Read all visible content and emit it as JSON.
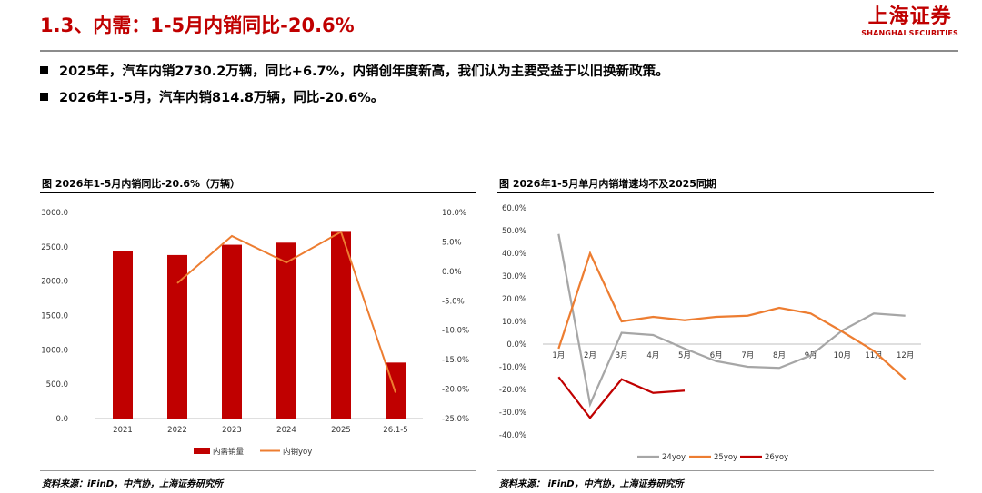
{
  "header": {
    "title": "1.3、内需：1-5月内销同比-20.6%",
    "logo_cn": "上海证券",
    "logo_en": "SHANGHAI SECURITIES"
  },
  "bullets": [
    "2025年，汽车内销2730.2万辆，同比+6.7%，内销创年度新高，我们认为主要受益于以旧换新政策。",
    "2026年1-5月，汽车内销814.8万辆，同比-20.6%。"
  ],
  "colors": {
    "accent": "#c00000",
    "grey": "#a6a6a6",
    "orange": "#ed7d31",
    "dark_red": "#c00000"
  },
  "chart_data": [
    {
      "type": "bar",
      "title": "图 2026年1-5月内销同比-20.6%（万辆）",
      "categories": [
        "2021",
        "2022",
        "2023",
        "2024",
        "2025",
        "26.1-5"
      ],
      "series": [
        {
          "name": "内需销量",
          "type": "bar",
          "axis": "left",
          "color": "#c00000",
          "values": [
            2435,
            2380,
            2530,
            2560,
            2730.2,
            814.8
          ]
        },
        {
          "name": "内销yoy",
          "type": "line",
          "axis": "right",
          "color": "#ed7d31",
          "values": [
            null,
            -2.0,
            6.0,
            1.5,
            6.7,
            -20.6
          ]
        }
      ],
      "y_left": {
        "lim": [
          0,
          3000
        ],
        "ticks": [
          "0.0",
          "500.0",
          "1000.0",
          "1500.0",
          "2000.0",
          "2500.0",
          "3000.0"
        ]
      },
      "y_right": {
        "lim": [
          -25,
          10
        ],
        "ticks": [
          "10.0%",
          "5.0%",
          "0.0%",
          "-5.0%",
          "-10.0%",
          "-15.0%",
          "-20.0%",
          "-25.0%"
        ]
      },
      "legend_position": "bottom",
      "grid": false,
      "source": "资料来源：iFinD，中汽协，上海证券研究所"
    },
    {
      "type": "line",
      "title": "图 2026年1-5月单月内销增速均不及2025同期",
      "categories": [
        "1月",
        "2月",
        "3月",
        "4月",
        "5月",
        "6月",
        "7月",
        "8月",
        "9月",
        "10月",
        "11月",
        "12月"
      ],
      "series": [
        {
          "name": "24yoy",
          "color": "#a6a6a6",
          "values": [
            48.5,
            -26.5,
            5.0,
            4.0,
            -2.0,
            -7.5,
            -10.0,
            -10.5,
            -5.0,
            6.0,
            13.5,
            12.5
          ]
        },
        {
          "name": "25yoy",
          "color": "#ed7d31",
          "values": [
            -2.0,
            40.0,
            10.0,
            12.0,
            10.5,
            12.0,
            12.5,
            16.0,
            13.5,
            5.5,
            -3.0,
            -15.5
          ]
        },
        {
          "name": "26yoy",
          "color": "#c00000",
          "values": [
            -14.5,
            -32.5,
            -15.5,
            -21.5,
            -20.5,
            null,
            null,
            null,
            null,
            null,
            null,
            null
          ]
        }
      ],
      "y": {
        "lim": [
          -40,
          60
        ],
        "ticks": [
          "60.0%",
          "50.0%",
          "40.0%",
          "30.0%",
          "20.0%",
          "10.0%",
          "0.0%",
          "-10.0%",
          "-20.0%",
          "-30.0%",
          "-40.0%"
        ]
      },
      "legend_position": "bottom",
      "grid": false,
      "source": "资料来源： iFinD，中汽协，上海证券研究所"
    }
  ]
}
